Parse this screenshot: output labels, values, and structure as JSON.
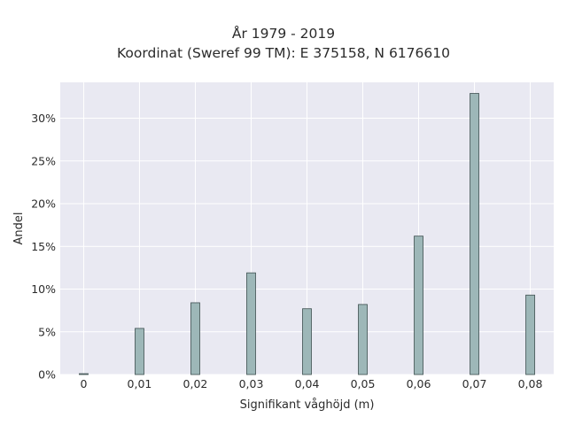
{
  "chart_data": {
    "type": "bar",
    "title": "År 1979 - 2019",
    "subtitle": "Koordinat (Sweref 99 TM): E 375158, N 6176610",
    "xlabel": "Signifikant våghöjd (m)",
    "ylabel": "Andel",
    "x": [
      0,
      0.01,
      0.02,
      0.03,
      0.04,
      0.05,
      0.06,
      0.07,
      0.08
    ],
    "x_tick_labels": [
      "0",
      "0,01",
      "0,02",
      "0,03",
      "0,04",
      "0,05",
      "0,06",
      "0,07",
      "0,08"
    ],
    "values": [
      0.1,
      5.4,
      8.4,
      11.9,
      7.7,
      8.2,
      16.2,
      32.9,
      9.3
    ],
    "y_tick_values": [
      0,
      5,
      10,
      15,
      20,
      25,
      30
    ],
    "y_tick_labels": [
      "0%",
      "5%",
      "10%",
      "15%",
      "20%",
      "25%",
      "30%"
    ],
    "ylim": [
      0,
      34.2
    ],
    "xlim": [
      -0.0042,
      0.0842
    ],
    "grid": true,
    "colors": {
      "bar_fill": "#9db7b8",
      "bar_edge": "#3d4f4f",
      "plot_bg": "#e9e9f2",
      "grid": "#ffffff"
    }
  }
}
